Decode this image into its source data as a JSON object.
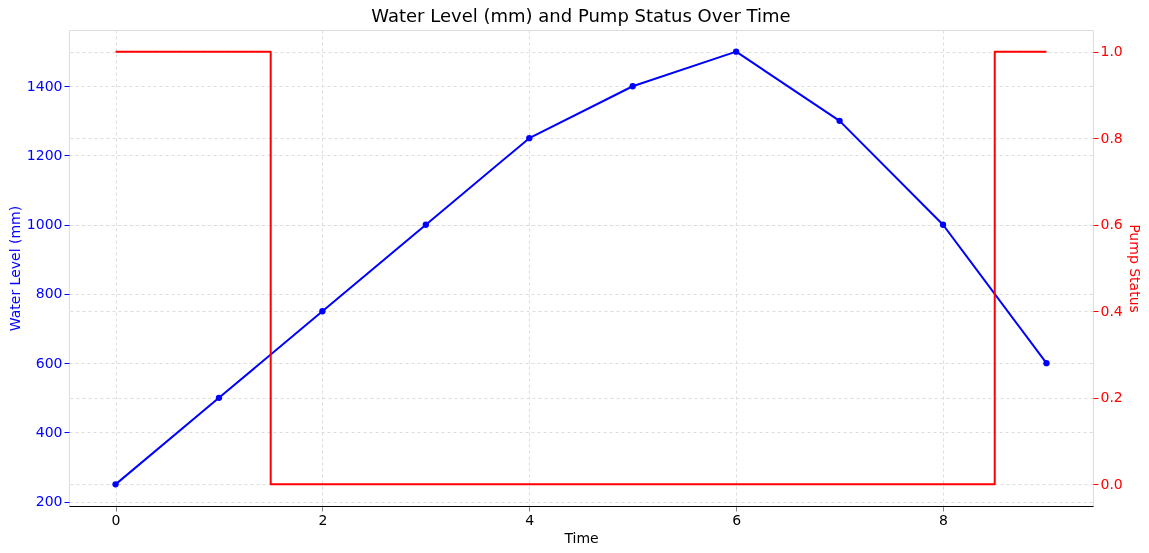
{
  "chart_data": {
    "type": "line",
    "title": "Water Level (mm) and Pump Status Over Time",
    "xlabel": "Time",
    "ylabel": "Water Level (mm)",
    "y2label": "Pump Status",
    "x": [
      0,
      1,
      2,
      3,
      4,
      5,
      6,
      7,
      8,
      9
    ],
    "series": [
      {
        "color": "#0000ff",
        "values": [
          250,
          500,
          750,
          1000,
          1250,
          1400,
          1500,
          1300,
          1000,
          600
        ],
        "marker": "circle"
      },
      {
        "color": "#ff0000",
        "type": "step",
        "axis": "y2",
        "values": [
          1,
          1,
          0,
          0,
          0,
          0,
          0,
          0,
          0,
          1
        ],
        "marker": "none"
      }
    ],
    "xlim": [
      -0.45,
      9.45
    ],
    "xticks": [
      0,
      2,
      4,
      6,
      8
    ],
    "ylim": [
      187.5,
      1562.5
    ],
    "yticks": [
      200,
      400,
      600,
      800,
      1000,
      1200,
      1400
    ],
    "y2lim": [
      -0.05,
      1.05
    ],
    "y2ticks": [
      {
        "value": 0,
        "label": "0.0"
      },
      {
        "value": 0.2,
        "label": "0.2"
      },
      {
        "value": 0.4,
        "label": "0.4"
      },
      {
        "value": 0.6,
        "label": "0.6"
      },
      {
        "value": 0.8,
        "label": "0.8"
      },
      {
        "value": 1,
        "label": "1.0"
      }
    ],
    "grid": true,
    "line_style": "solid"
  }
}
